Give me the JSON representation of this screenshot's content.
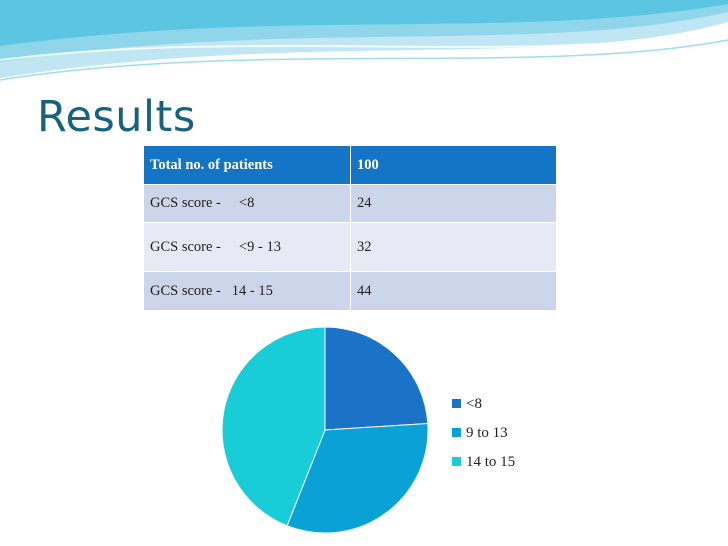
{
  "slide": {
    "title": "Results"
  },
  "table": {
    "header": [
      "Total no. of patients",
      "100"
    ],
    "rows": [
      [
        "GCS score -     <8",
        "24"
      ],
      [
        "GCS score -     <9 - 13",
        "32"
      ],
      [
        "GCS score -   14 - 15",
        "44"
      ]
    ]
  },
  "chart_data": {
    "type": "pie",
    "categories": [
      "<8",
      "9 to 13",
      "14 to 15"
    ],
    "values": [
      24,
      32,
      44
    ],
    "colors": [
      "#1a73c7",
      "#0aa2d6",
      "#18cdd8"
    ],
    "legend_position": "right"
  }
}
